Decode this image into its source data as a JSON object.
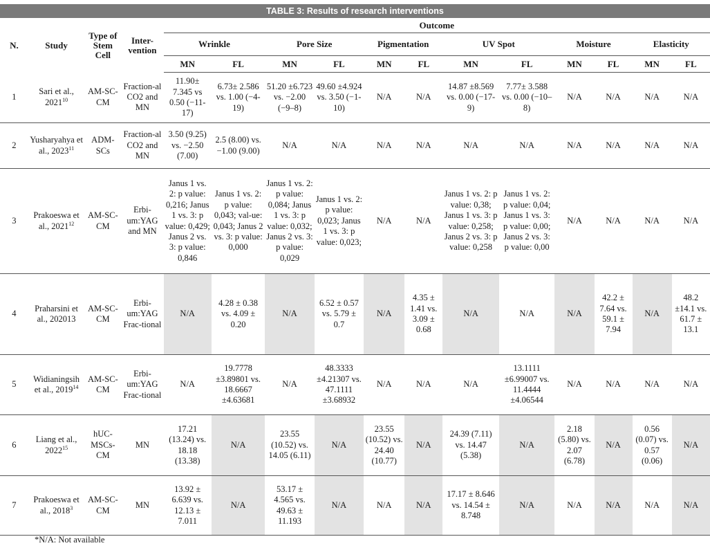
{
  "caption": {
    "label": "TABLE 3:",
    "text": "Results of research interventions"
  },
  "header": {
    "no": "N.",
    "study": "Study",
    "type": "Type of Stem Cell",
    "intervention": "Inter- vention",
    "outcome": "Outcome",
    "groups": [
      "Wrinkle",
      "Pore Size",
      "Pigmentation",
      "UV Spot",
      "Moisture",
      "Elasticity"
    ],
    "mn": "MN",
    "fl": "FL"
  },
  "rows": [
    {
      "n": "1",
      "study": "Sari et al., 2021",
      "ref": "10",
      "type": "AM-SC-CM",
      "intervention": "Fraction-al CO2 and MN",
      "cells": [
        "11.90± 7.345 vs 0.50 (−11-17)",
        "6.73± 2.586 vs. 1.00 (−4-19)",
        "51.20 ±6.723 vs. −2.00 (−9–8)",
        "49.60 ±4.924 vs. 3.50 (−1-10)",
        "N/A",
        "N/A",
        "14.87 ±8.569 vs. 0.00 (−17-9)",
        "7.77± 3.588 vs. 0.00 (−10–8)",
        "N/A",
        "N/A",
        "N/A",
        "N/A"
      ]
    },
    {
      "n": "2",
      "study": "Yusharyahya et al., 2023",
      "ref": "11",
      "type": "ADM-SCs",
      "intervention": "Fraction-al CO2 and MN",
      "cells": [
        "3.50 (9.25) vs. −2.50 (7.00)",
        "2.5 (8.00) vs. −1.00 (9.00)",
        "N/A",
        "N/A",
        "N/A",
        "N/A",
        "N/A",
        "N/A",
        "N/A",
        "N/A",
        "N/A",
        "N/A"
      ]
    },
    {
      "n": "3",
      "study": "Prakoeswa et al., 2021",
      "ref": "12",
      "type": "AM-SC-CM",
      "intervention": "Erbi-um:YAG and MN",
      "cells": [
        "Janus 1 vs. 2: p value: 0,216; Janus 1 vs. 3: p value: 0,429; Janus 2 vs. 3: p value: 0,846",
        "Janus 1 vs. 2: p value: 0,043; val-ue: 0,043; Janus 2 vs. 3: p value: 0,000",
        "Janus 1 vs. 2: p value: 0,084; Janus 1 vs. 3: p value: 0,032; Janus 2 vs. 3: p value: 0,029",
        "Janus 1 vs. 2: p value: 0,023; Janus 1 vs. 3: p value: 0,023;",
        "N/A",
        "N/A",
        "Janus 1 vs. 2: p value: 0,38; Janus 1 vs. 3: p value: 0,258; Janus 2 vs. 3: p value: 0,258",
        "Janus 1 vs. 2: p value: 0,04; Janus 1 vs. 3: p value: 0,00; Janus 2 vs. 3: p value: 0,00",
        "N/A",
        "N/A",
        "N/A",
        "N/A"
      ]
    },
    {
      "n": "4",
      "study": "Praharsini et al., 202013",
      "ref": "",
      "type": "AM-SC-CM",
      "intervention": "Erbi-um:YAG Frac-tional",
      "cells": [
        "N/A",
        "4.28 ± 0.38 vs. 4.09 ± 0.20",
        "N/A",
        "6.52 ± 0.57 vs. 5.79 ± 0.7",
        "N/A",
        "4.35 ± 1.41 vs. 3.09 ± 0.68",
        "N/A",
        "N/A",
        "N/A",
        "42.2 ± 7.64 vs. 59.1 ± 7.94",
        "N/A",
        "48.2 ±14.1 vs. 61.7 ± 13.1"
      ]
    },
    {
      "n": "5",
      "study": "Widianingsih et al., 2019",
      "ref": "14",
      "type": "AM-SC-CM",
      "intervention": "Erbi-um:YAG Frac-tional",
      "cells": [
        "N/A",
        "19.7778 ±3.89801 vs. 18.6667 ±4.63681",
        "N/A",
        "48.3333 ±4.21307 vs. 47.1111 ±3.68932",
        "N/A",
        "N/A",
        "N/A",
        "13.1111 ±6.99007 vs. 11.4444 ±4.06544",
        "N/A",
        "N/A",
        "N/A",
        "N/A"
      ]
    },
    {
      "n": "6",
      "study": "Liang et al., 2022",
      "ref": "15",
      "type": "hUC-MSCs-CM",
      "intervention": "MN",
      "cells": [
        "17.21 (13.24) vs. 18.18 (13.38)",
        "N/A",
        "23.55 (10.52) vs. 14.05 (6.11)",
        "N/A",
        "23.55 (10.52) vs. 24.40 (10.77)",
        "N/A",
        "24.39 (7.11) vs. 14.47 (5.38)",
        "N/A",
        "2.18 (5.80) vs. 2.07 (6.78)",
        "N/A",
        "0.56 (0.07) vs. 0.57 (0.06)",
        "N/A"
      ]
    },
    {
      "n": "7",
      "study": "Prakoeswa et al., 2018",
      "ref": "3",
      "type": "AM-SC-CM",
      "intervention": "MN",
      "cells": [
        "13.92 ± 6.639 vs. 12.13 ± 7.011",
        "N/A",
        "53.17 ± 4.565 vs. 49.63 ± 11.193",
        "N/A",
        "N/A",
        "N/A",
        "17.17 ± 8.646 vs. 14.54 ± 8.748",
        "N/A",
        "N/A",
        "N/A",
        "N/A",
        "N/A"
      ]
    }
  ],
  "footnote": "*N/A: Not available"
}
